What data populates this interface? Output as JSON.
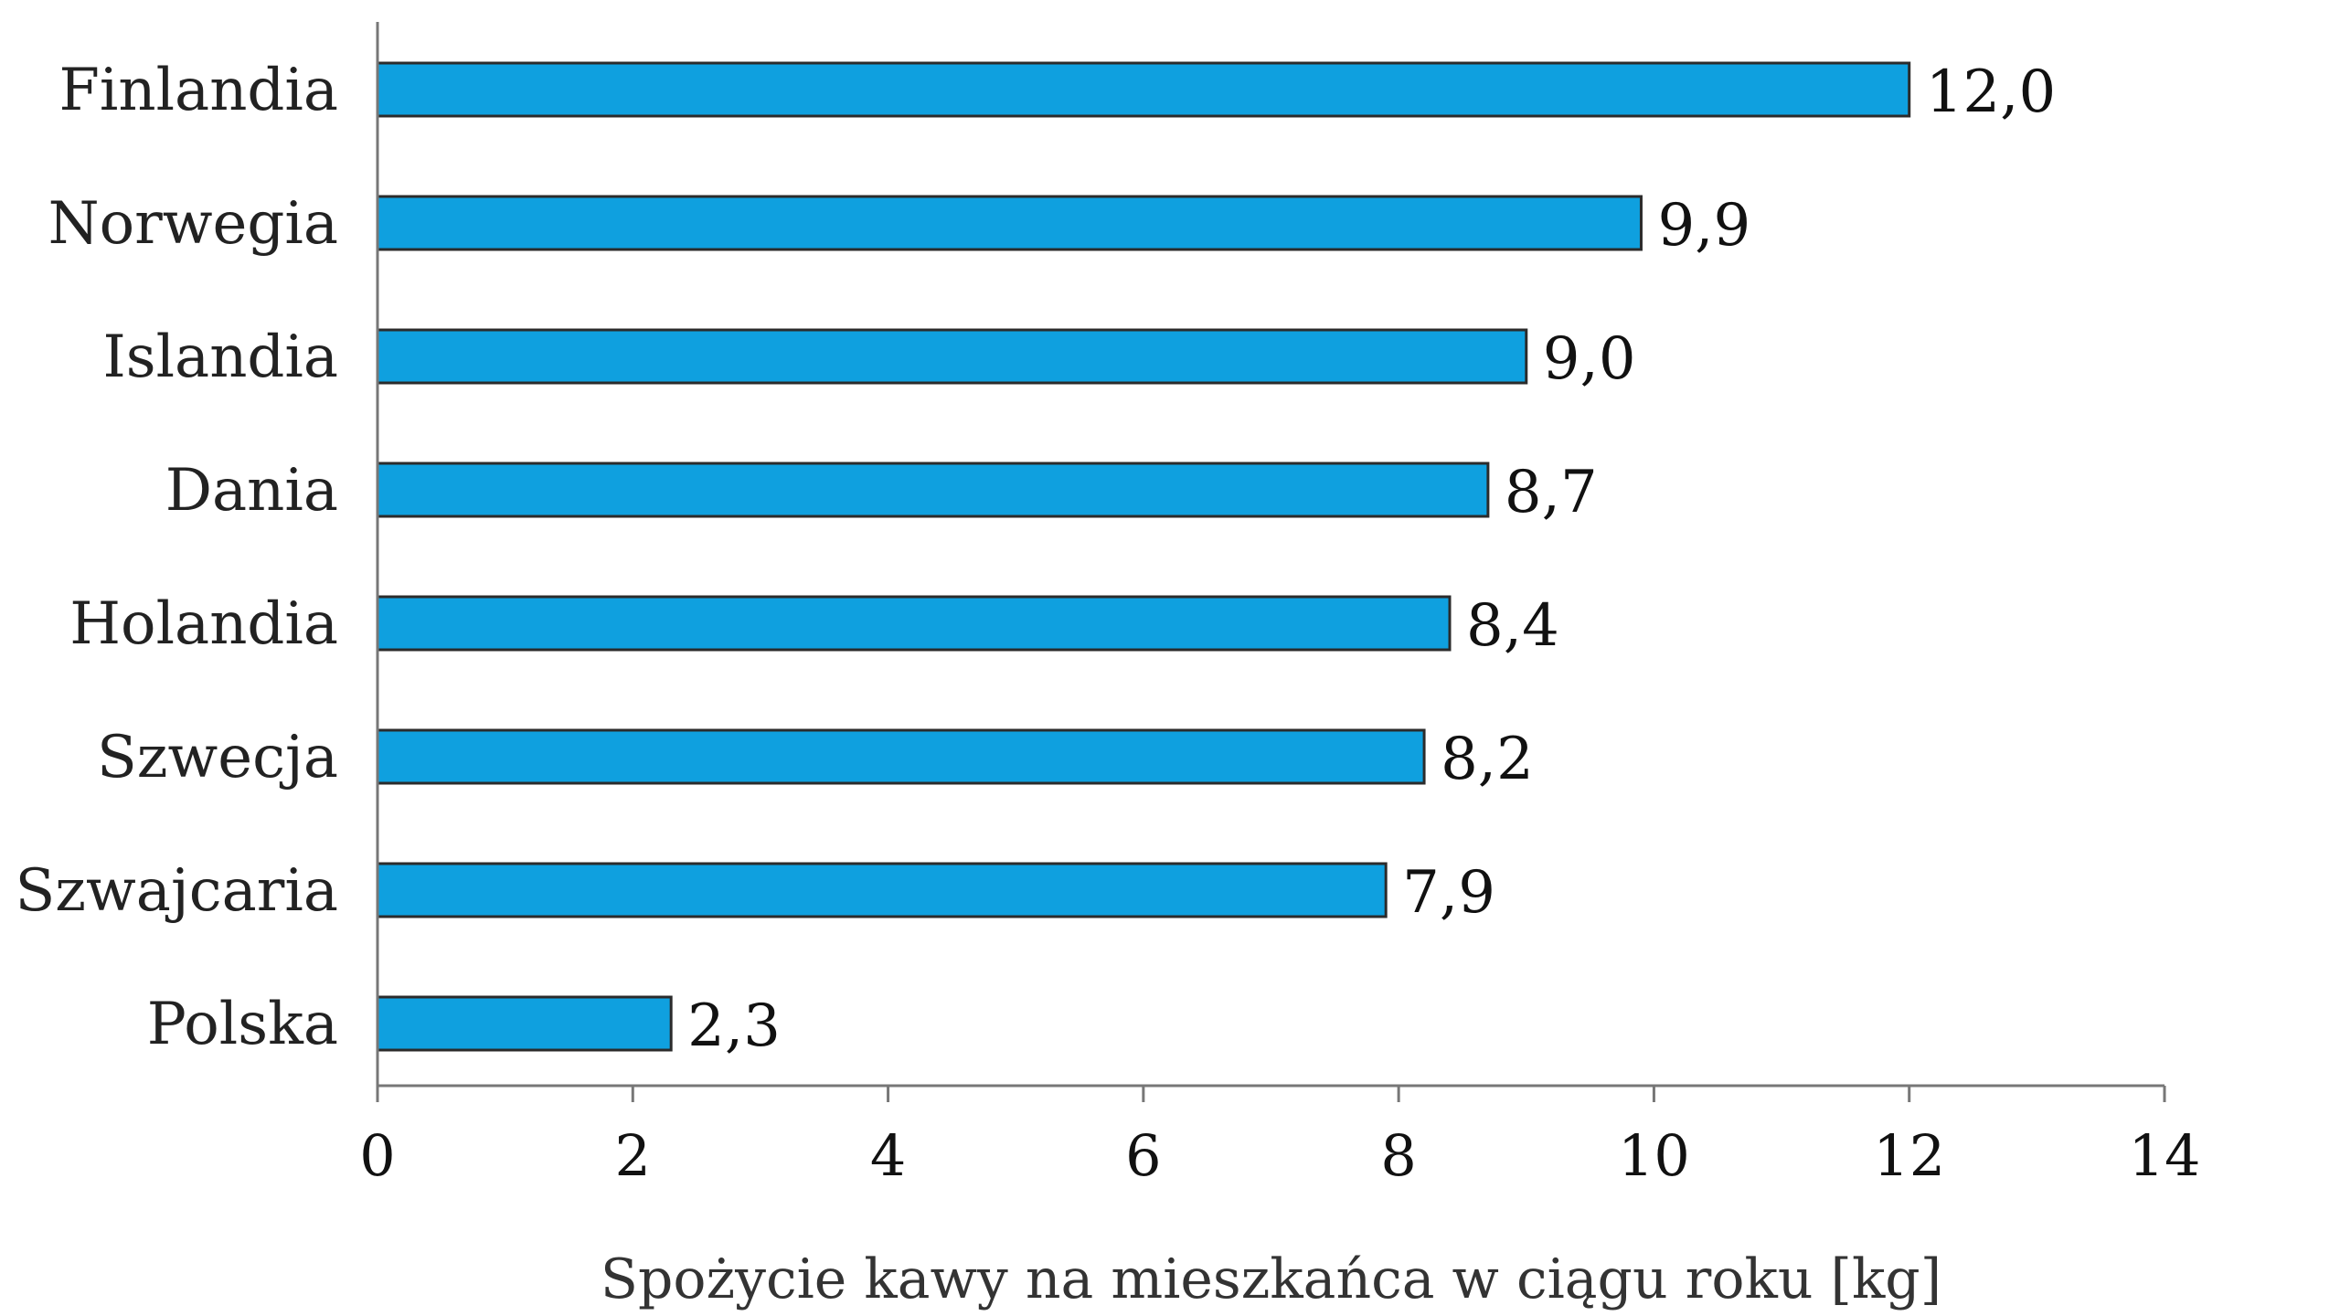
{
  "chart_data": {
    "type": "bar",
    "orientation": "horizontal",
    "categories": [
      "Finlandia",
      "Norwegia",
      "Islandia",
      "Dania",
      "Holandia",
      "Szwecja",
      "Szwajcaria",
      "Polska"
    ],
    "values": [
      12.0,
      9.9,
      9.0,
      8.7,
      8.4,
      8.2,
      7.9,
      2.3
    ],
    "value_labels": [
      "12,0",
      "9,9",
      "9,0",
      "8,7",
      "8,4",
      "8,2",
      "7,9",
      "2,3"
    ],
    "xlabel": "Spożycie kawy na mieszkańca w ciągu roku [kg]",
    "ylabel": "",
    "xlim": [
      0,
      14
    ],
    "xticks": [
      0,
      2,
      4,
      6,
      8,
      10,
      12,
      14
    ],
    "xtick_labels": [
      "0",
      "2",
      "4",
      "6",
      "8",
      "10",
      "12",
      "14"
    ],
    "grid": false,
    "bar_color": "#0fa0df",
    "bar_edge_color": "#2b2b2b"
  }
}
